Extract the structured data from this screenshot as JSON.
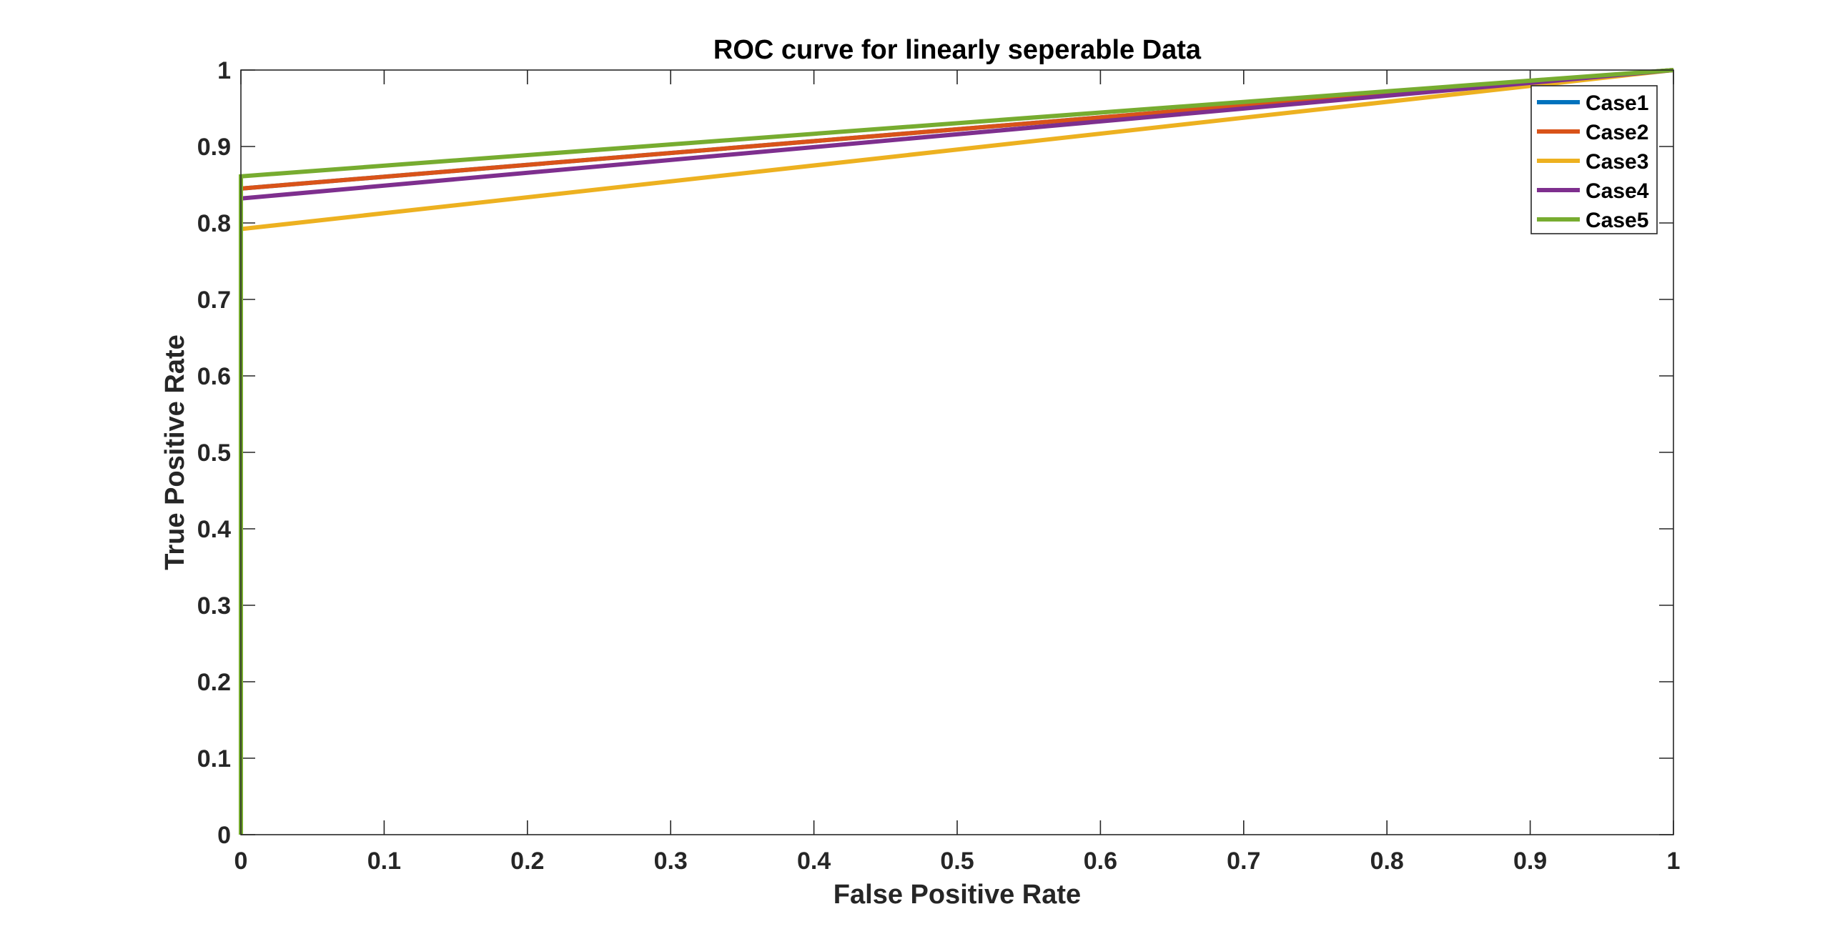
{
  "chart_data": {
    "type": "line",
    "title": "ROC curve for linearly seperable Data",
    "xlabel": "False Positive Rate",
    "ylabel": "True Positive Rate",
    "xlim": [
      0,
      1
    ],
    "ylim": [
      0,
      1
    ],
    "xticks": [
      0,
      0.1,
      0.2,
      0.3,
      0.4,
      0.5,
      0.6,
      0.7,
      0.8,
      0.9,
      1
    ],
    "yticks": [
      0,
      0.1,
      0.2,
      0.3,
      0.4,
      0.5,
      0.6,
      0.7,
      0.8,
      0.9,
      1
    ],
    "xtick_labels": [
      "0",
      "0.1",
      "0.2",
      "0.3",
      "0.4",
      "0.5",
      "0.6",
      "0.7",
      "0.8",
      "0.9",
      "1"
    ],
    "ytick_labels": [
      "0",
      "0.1",
      "0.2",
      "0.3",
      "0.4",
      "0.5",
      "0.6",
      "0.7",
      "0.8",
      "0.9",
      "1"
    ],
    "grid": false,
    "legend_position": "top-right",
    "series": [
      {
        "name": "Case1",
        "color": "#0072BD",
        "x": [
          0,
          0,
          1
        ],
        "y": [
          0,
          0.845,
          1
        ]
      },
      {
        "name": "Case2",
        "color": "#D95319",
        "x": [
          0,
          0,
          1
        ],
        "y": [
          0,
          0.845,
          1
        ]
      },
      {
        "name": "Case3",
        "color": "#EDB120",
        "x": [
          0,
          0,
          1
        ],
        "y": [
          0,
          0.792,
          1
        ]
      },
      {
        "name": "Case4",
        "color": "#7E2F8E",
        "x": [
          0,
          0,
          1
        ],
        "y": [
          0,
          0.832,
          1
        ]
      },
      {
        "name": "Case5",
        "color": "#77AC30",
        "x": [
          0,
          0,
          1
        ],
        "y": [
          0,
          0.861,
          1
        ]
      }
    ]
  }
}
